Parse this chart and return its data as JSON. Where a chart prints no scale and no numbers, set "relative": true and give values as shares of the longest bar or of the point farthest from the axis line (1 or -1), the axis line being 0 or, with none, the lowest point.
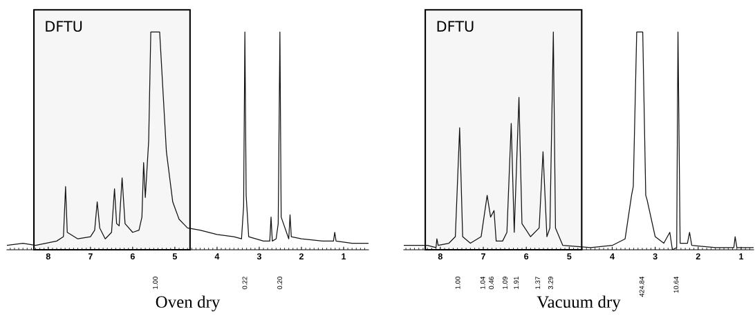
{
  "chart_data": [
    {
      "type": "line",
      "xlabel": "Oven dry",
      "relative": true,
      "xlim": [
        8.98,
        0.41
      ],
      "xticks": [
        8,
        7,
        6,
        5,
        4,
        3,
        2,
        1
      ],
      "grid": false,
      "legend": false,
      "tick_labels": "x",
      "line_style": "solid",
      "marker": "none",
      "bands": [
        {
          "axis": "x",
          "from": 8.34,
          "to": 4.64,
          "label": "DFTU",
          "color": "#f6f6f6"
        }
      ],
      "annotations": [
        "1.00",
        "0.22",
        "0.20"
      ],
      "x": [
        8.98,
        8.6,
        8.3,
        7.8,
        7.64,
        7.59,
        7.55,
        7.3,
        7.0,
        6.9,
        6.84,
        6.78,
        6.65,
        6.5,
        6.43,
        6.38,
        6.32,
        6.25,
        6.18,
        6.0,
        5.85,
        5.78,
        5.74,
        5.7,
        5.62,
        5.57,
        5.45,
        5.36,
        5.2,
        5.05,
        4.9,
        4.7,
        4.4,
        4.0,
        3.6,
        3.42,
        3.37,
        3.34,
        3.31,
        3.25,
        2.9,
        2.75,
        2.72,
        2.69,
        2.6,
        2.55,
        2.51,
        2.48,
        2.3,
        2.27,
        2.24,
        2.0,
        1.5,
        1.24,
        1.21,
        1.18,
        0.8,
        0.41
      ],
      "series": [
        {
          "color": "#111111",
          "values": [
            0.02,
            0.03,
            0.02,
            0.04,
            0.06,
            0.29,
            0.08,
            0.05,
            0.06,
            0.09,
            0.22,
            0.1,
            0.05,
            0.08,
            0.28,
            0.12,
            0.11,
            0.33,
            0.12,
            0.08,
            0.09,
            0.15,
            0.4,
            0.24,
            0.5,
            1.0,
            1.0,
            1.0,
            0.45,
            0.22,
            0.14,
            0.1,
            0.09,
            0.07,
            0.06,
            0.05,
            0.2,
            1.0,
            0.25,
            0.06,
            0.04,
            0.04,
            0.15,
            0.04,
            0.05,
            0.12,
            1.0,
            0.15,
            0.05,
            0.16,
            0.06,
            0.05,
            0.04,
            0.04,
            0.08,
            0.04,
            0.03,
            0.03
          ]
        }
      ]
    },
    {
      "type": "line",
      "xlabel": "Vacuum dry",
      "relative": true,
      "xlim": [
        8.85,
        0.71
      ],
      "xticks": [
        8,
        7,
        6,
        5,
        4,
        3,
        2,
        1
      ],
      "grid": false,
      "legend": false,
      "tick_labels": "x",
      "line_style": "solid",
      "marker": "none",
      "bands": [
        {
          "axis": "x",
          "from": 8.35,
          "to": 4.71,
          "label": "DFTU",
          "color": "#f6f6f6"
        }
      ],
      "annotations": [
        "1.00",
        "1.04",
        "0.46",
        "1.09",
        "1.91",
        "1.37",
        "3.29",
        "424.84",
        "10.64"
      ],
      "x": [
        8.85,
        8.3,
        8.1,
        8.08,
        8.05,
        7.8,
        7.65,
        7.55,
        7.48,
        7.3,
        7.05,
        6.91,
        6.83,
        6.75,
        6.7,
        6.55,
        6.45,
        6.35,
        6.28,
        6.17,
        6.1,
        5.9,
        5.7,
        5.61,
        5.52,
        5.45,
        5.37,
        5.32,
        5.15,
        4.5,
        4.0,
        3.7,
        3.55,
        3.51,
        3.43,
        3.36,
        3.29,
        3.22,
        3.19,
        3.0,
        2.8,
        2.66,
        2.6,
        2.5,
        2.47,
        2.42,
        2.25,
        2.2,
        2.15,
        1.6,
        1.17,
        1.14,
        1.1,
        0.71
      ],
      "series": [
        {
          "color": "#111111",
          "values": [
            0.02,
            0.02,
            0.01,
            0.05,
            0.02,
            0.03,
            0.06,
            0.56,
            0.06,
            0.03,
            0.06,
            0.25,
            0.15,
            0.18,
            0.04,
            0.04,
            0.08,
            0.58,
            0.08,
            0.7,
            0.12,
            0.06,
            0.1,
            0.45,
            0.06,
            0.1,
            1.0,
            0.1,
            0.02,
            0.01,
            0.02,
            0.05,
            0.25,
            0.29,
            1.0,
            1.0,
            1.0,
            0.25,
            0.23,
            0.06,
            0.03,
            0.08,
            0.0,
            0.01,
            1.0,
            0.03,
            0.03,
            0.08,
            0.02,
            0.01,
            0.01,
            0.06,
            0.01,
            0.01
          ]
        }
      ]
    }
  ]
}
